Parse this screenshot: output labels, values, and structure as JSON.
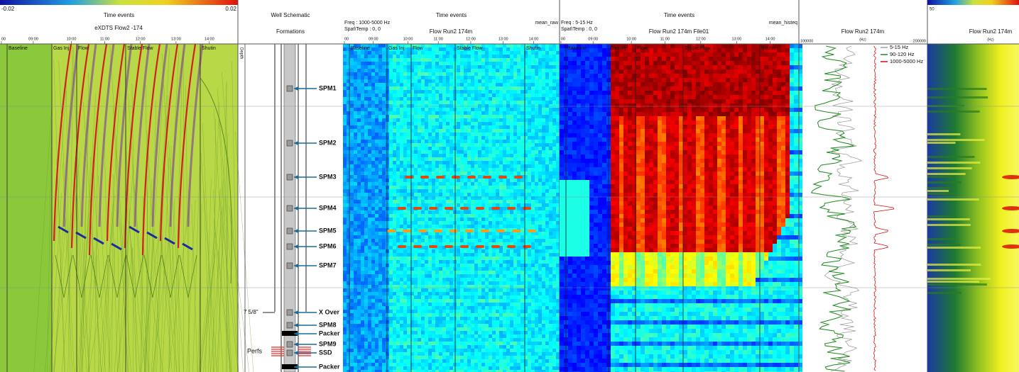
{
  "das_raw": {
    "title": "Time events",
    "subtitle": "eXDTS Flow2 -174",
    "scale_min": "-0.02",
    "scale_max": "0.02",
    "ticks": [
      "00",
      "09:00",
      "10:00",
      "11:00",
      "12:00",
      "13:00",
      "14:00"
    ],
    "events": [
      "Baseline",
      "Gas Inj",
      "Flow",
      "Stable Flow",
      "Shutin"
    ]
  },
  "schematic": {
    "title": "Well Schematic",
    "subtitle": "Formations",
    "depth_label": "Depth",
    "components": [
      "SPM1",
      "SPM2",
      "SPM3",
      "SPM4",
      "SPM5",
      "SPM6",
      "SPM7",
      "X Over",
      "SPM8",
      "Packer",
      "SPM9",
      "SSD",
      "Packer"
    ],
    "casing_label": "7 5/8\"",
    "perfs_label": "Perfs"
  },
  "das_high": {
    "title": "Time events",
    "freq": "Freq : 1000-5000 Hz",
    "spat": "Spat\\Temp : 0, 0",
    "mode": "mean_raw",
    "subtitle": "Flow Run2 174m",
    "ticks": [
      "00",
      "09:00",
      "10:00",
      "11:00",
      "12:00",
      "13:00",
      "14:00"
    ],
    "events": [
      "Baseline",
      "Gas Inj",
      "Flow",
      "Stable Flow",
      "Shutin"
    ]
  },
  "das_low": {
    "title": "Time events",
    "freq": "Freq : 5-15 Hz",
    "spat": "Spat\\Temp : 0, 0",
    "mode": "mean_histeq",
    "subtitle": "Flow Run2 174m File01",
    "ticks": [
      "00",
      "09:00",
      "10:00",
      "11:00",
      "12:00",
      "13:00",
      "14:00"
    ],
    "events": [
      "Baseline",
      "Gas Inj",
      "Flow",
      "Stable Flow",
      "Shutin"
    ]
  },
  "log": {
    "title": "Flow Run2 174m",
    "unit": "(Hz)",
    "scale_min": "100000",
    "scale_max": "200000",
    "legend": [
      {
        "name": "5-15 Hz",
        "color": "#a0a0a0"
      },
      {
        "name": "90-120 Hz",
        "color": "#1e8a1e"
      },
      {
        "name": "1000-5000 Hz",
        "color": "#d01010"
      }
    ]
  },
  "heat": {
    "title": "Flow Run2 174m",
    "unit": "(Hz)",
    "scale_min": "50"
  }
}
